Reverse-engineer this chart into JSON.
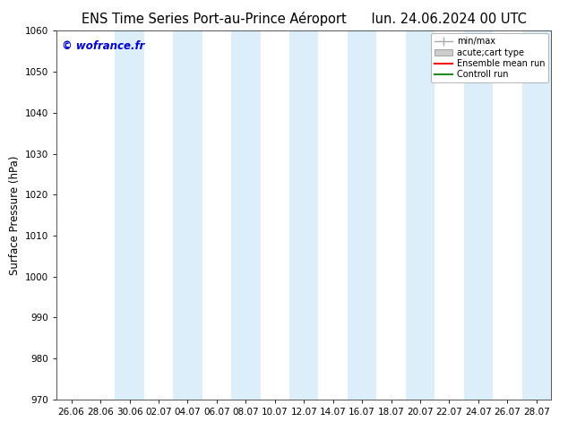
{
  "title_left": "ENS Time Series Port-au-Prince Aéroport",
  "title_right": "lun. 24.06.2024 00 UTC",
  "ylabel": "Surface Pressure (hPa)",
  "ylim": [
    970,
    1060
  ],
  "yticks": [
    970,
    980,
    990,
    1000,
    1010,
    1020,
    1030,
    1040,
    1050,
    1060
  ],
  "x_labels": [
    "26.06",
    "28.06",
    "30.06",
    "02.07",
    "04.07",
    "06.07",
    "08.07",
    "10.07",
    "12.07",
    "14.07",
    "16.07",
    "18.07",
    "20.07",
    "22.07",
    "24.07",
    "26.07",
    "28.07"
  ],
  "watermark": "© wofrance.fr",
  "watermark_color": "#0000cc",
  "bg_color": "#ffffff",
  "plot_bg_color": "#ffffff",
  "shade_color": "#dceef9",
  "shade_indices": [
    2,
    4,
    6,
    8,
    10,
    12,
    14,
    16
  ],
  "title_fontsize": 10.5,
  "tick_fontsize": 7.5,
  "ylabel_fontsize": 8.5
}
